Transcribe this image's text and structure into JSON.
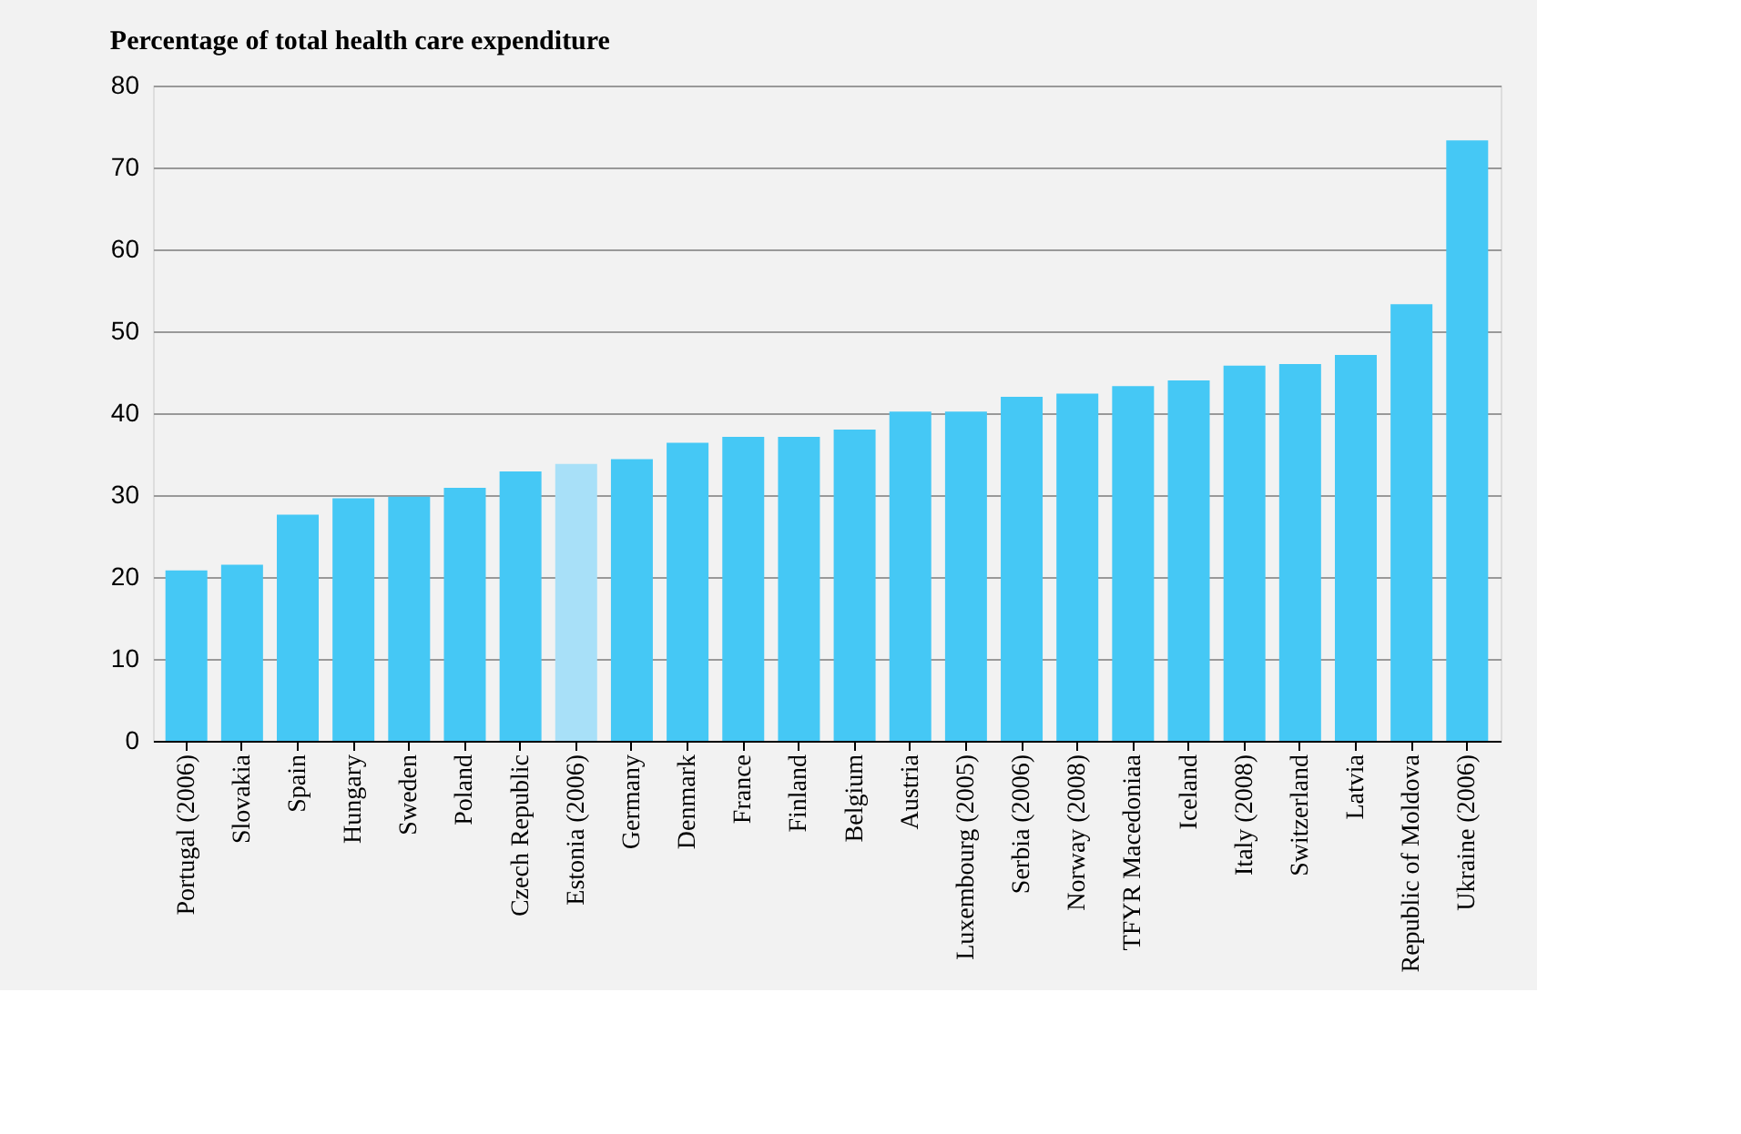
{
  "chart_data": {
    "type": "bar",
    "title": "Percentage of total health care expenditure",
    "categories": [
      "Portugal (2006)",
      "Slovakia",
      "Spain",
      "Hungary",
      "Sweden",
      "Poland",
      "Czech Republic",
      "Estonia (2006)",
      "Germany",
      "Denmark",
      "France",
      "Finland",
      "Belgium",
      "Austria",
      "Luxembourg (2005)",
      "Serbia (2006)",
      "Norway (2008)",
      "TFYR Macedoniaa",
      "Iceland",
      "Italy (2008)",
      "Switzerland",
      "Latvia",
      "Republic of Moldova",
      "Ukraine (2006)"
    ],
    "values": [
      20.8,
      21.5,
      27.6,
      29.6,
      29.8,
      30.9,
      32.9,
      33.8,
      34.4,
      36.4,
      37.1,
      37.1,
      38.0,
      40.2,
      40.2,
      42.0,
      42.4,
      43.3,
      44.0,
      45.8,
      46.0,
      47.1,
      53.3,
      73.3
    ],
    "colors": [
      "#45c8f5",
      "#45c8f5",
      "#45c8f5",
      "#45c8f5",
      "#45c8f5",
      "#45c8f5",
      "#45c8f5",
      "#a8e0f8",
      "#45c8f5",
      "#45c8f5",
      "#45c8f5",
      "#45c8f5",
      "#45c8f5",
      "#45c8f5",
      "#45c8f5",
      "#45c8f5",
      "#45c8f5",
      "#45c8f5",
      "#45c8f5",
      "#45c8f5",
      "#45c8f5",
      "#45c8f5",
      "#45c8f5",
      "#45c8f5"
    ],
    "ylim": [
      0,
      80
    ],
    "yticks": [
      0,
      10,
      20,
      30,
      40,
      50,
      60,
      70,
      80
    ],
    "grid": "y"
  }
}
